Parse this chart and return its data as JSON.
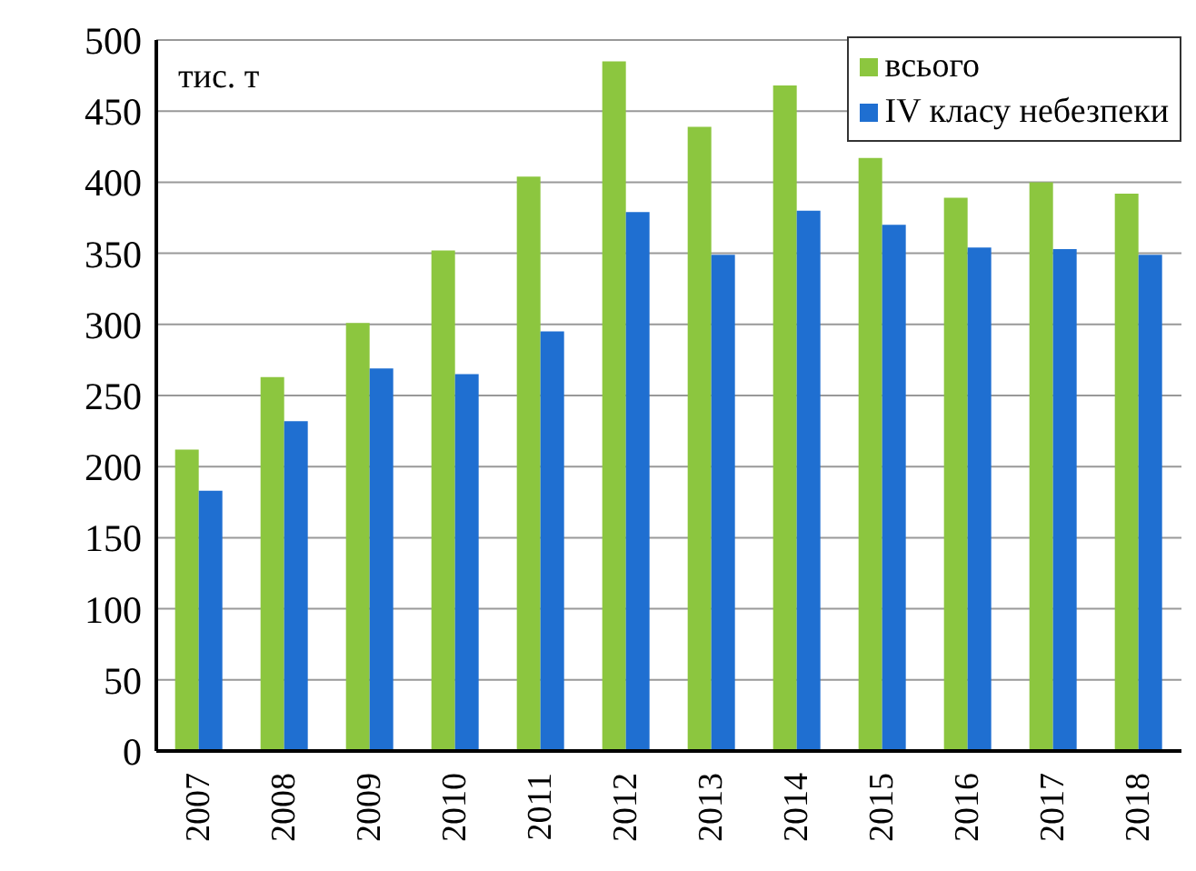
{
  "chart_data": {
    "type": "bar",
    "ylabel": "тис. т",
    "categories": [
      "2007",
      "2008",
      "2009",
      "2010",
      "2011",
      "2012",
      "2013",
      "2014",
      "2015",
      "2016",
      "2017",
      "2018"
    ],
    "series": [
      {
        "name": "всього",
        "color": "#8cc63f",
        "values": [
          212,
          263,
          301,
          352,
          404,
          485,
          439,
          468,
          417,
          389,
          400,
          392
        ]
      },
      {
        "name": "IV класу небезпеки",
        "color": "#1f6fd1",
        "values": [
          183,
          232,
          269,
          265,
          295,
          379,
          349,
          380,
          370,
          354,
          353,
          349
        ]
      }
    ],
    "ylim": [
      0,
      500
    ],
    "yticks": [
      0,
      50,
      100,
      150,
      200,
      250,
      300,
      350,
      400,
      450,
      500
    ],
    "grid": "y",
    "legend": "top right"
  }
}
